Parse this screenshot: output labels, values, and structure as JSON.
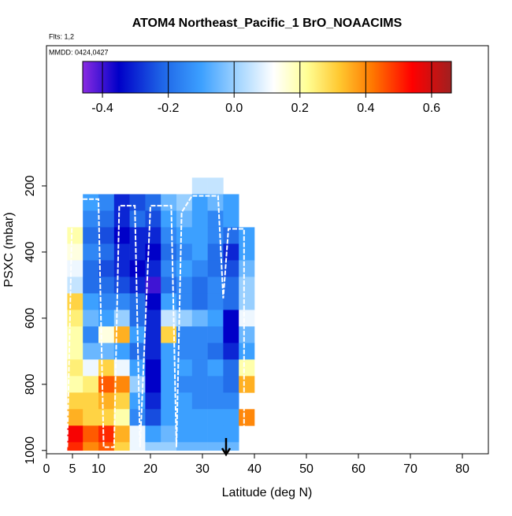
{
  "chart_data": {
    "type": "heatmap",
    "title": "ATOM4 Northeast_Pacific_1 BrO_NOAACIMS",
    "flights_note": "Flts: 1,2",
    "dates_note": "MMDD: 0424,0427",
    "xlabel": "Latitude (deg N)",
    "ylabel": "PSXC (mbar)",
    "xlim": [
      0,
      85
    ],
    "xticks": [
      0,
      5,
      10,
      20,
      30,
      40,
      50,
      60,
      70,
      80
    ],
    "ylim": [
      1010,
      -224
    ],
    "yticks": [
      200,
      400,
      600,
      800,
      1000
    ],
    "x_bins": [
      4,
      7,
      10,
      13,
      16,
      19,
      22,
      25,
      28,
      31,
      34,
      37,
      40
    ],
    "y_bins": [
      175,
      225,
      275,
      325,
      375,
      425,
      475,
      525,
      575,
      625,
      675,
      725,
      775,
      825,
      875,
      925,
      975,
      1000
    ],
    "z": [
      [
        null,
        null,
        null,
        null,
        null,
        null,
        null,
        null,
        0.05,
        0.05,
        null,
        null
      ],
      [
        null,
        -0.1,
        -0.15,
        -0.3,
        -0.25,
        -0.2,
        -0.05,
        0.0,
        -0.1,
        -0.05,
        -0.1,
        null
      ],
      [
        null,
        -0.15,
        -0.2,
        -0.3,
        -0.2,
        -0.25,
        -0.1,
        -0.05,
        -0.1,
        -0.15,
        -0.1,
        null
      ],
      [
        0.2,
        -0.2,
        -0.25,
        -0.35,
        -0.3,
        -0.3,
        -0.15,
        -0.1,
        -0.1,
        -0.15,
        -0.2,
        -0.1
      ],
      [
        0.15,
        -0.15,
        -0.2,
        -0.3,
        -0.3,
        -0.35,
        -0.2,
        -0.15,
        -0.1,
        -0.2,
        -0.3,
        -0.1
      ],
      [
        0.1,
        -0.2,
        -0.25,
        -0.3,
        -0.35,
        -0.3,
        -0.15,
        -0.1,
        -0.15,
        -0.2,
        -0.25,
        -0.05
      ],
      [
        0.05,
        -0.2,
        -0.2,
        -0.25,
        -0.3,
        -0.4,
        -0.2,
        -0.15,
        -0.2,
        -0.15,
        -0.2,
        0.0
      ],
      [
        0.3,
        -0.1,
        -0.15,
        -0.15,
        -0.2,
        -0.35,
        -0.1,
        -0.15,
        -0.2,
        -0.15,
        -0.2,
        0.0
      ],
      [
        0.25,
        -0.05,
        -0.1,
        0.0,
        -0.2,
        -0.3,
        0.05,
        0.0,
        -0.05,
        -0.1,
        -0.35,
        0.1
      ],
      [
        0.2,
        -0.15,
        0.15,
        0.35,
        -0.1,
        -0.3,
        0.3,
        -0.15,
        -0.15,
        -0.15,
        -0.35,
        -0.05
      ],
      [
        0.2,
        -0.05,
        -0.05,
        -0.1,
        -0.2,
        -0.3,
        -0.1,
        -0.15,
        -0.15,
        -0.2,
        -0.3,
        -0.1
      ],
      [
        0.25,
        0.1,
        0.3,
        0.1,
        -0.1,
        -0.35,
        -0.1,
        -0.1,
        -0.15,
        -0.1,
        -0.2,
        0.2
      ],
      [
        0.2,
        0.25,
        0.45,
        0.4,
        0.0,
        -0.35,
        -0.1,
        -0.15,
        -0.15,
        -0.15,
        -0.2,
        0.35
      ],
      [
        0.3,
        0.3,
        0.35,
        0.3,
        -0.1,
        -0.3,
        -0.1,
        -0.1,
        -0.15,
        -0.15,
        -0.15,
        null
      ],
      [
        0.35,
        0.3,
        0.3,
        0.2,
        -0.15,
        -0.25,
        -0.1,
        -0.1,
        -0.1,
        -0.1,
        -0.1,
        0.4
      ],
      [
        0.55,
        0.45,
        0.5,
        0.35,
        0.1,
        -0.1,
        -0.05,
        -0.1,
        -0.1,
        -0.1,
        -0.1,
        null
      ],
      [
        0.5,
        0.4,
        0.45,
        0.3,
        0.1,
        0.0,
        0.0,
        -0.05,
        -0.05,
        -0.05,
        -0.05,
        null
      ]
    ],
    "track": {
      "color": "#ffffff",
      "x": [
        4,
        5,
        10,
        11,
        13,
        14,
        17,
        18,
        20,
        24,
        25,
        26,
        28,
        33,
        34,
        35,
        38,
        38
      ],
      "y": [
        990,
        240,
        240,
        990,
        990,
        260,
        260,
        990,
        260,
        260,
        990,
        280,
        230,
        230,
        540,
        330,
        330,
        990
      ]
    },
    "colorbar": {
      "lim": [
        -0.46,
        0.66
      ],
      "ticks": [
        -0.4,
        -0.2,
        0.0,
        0.2,
        0.4,
        0.6
      ],
      "tick_labels": [
        "-0.4",
        "-0.2",
        "0.0",
        "0.2",
        "0.4",
        "0.6"
      ],
      "stops": [
        -0.46,
        -0.35,
        -0.22,
        -0.1,
        0.02,
        0.12,
        0.22,
        0.32,
        0.42,
        0.54,
        0.66
      ],
      "colors": [
        "#8a2be2",
        "#0000c8",
        "#1e64e6",
        "#3ca0ff",
        "#aad8ff",
        "#ffffff",
        "#ffff96",
        "#ffc830",
        "#ff7800",
        "#ff0000",
        "#a02020"
      ]
    }
  }
}
